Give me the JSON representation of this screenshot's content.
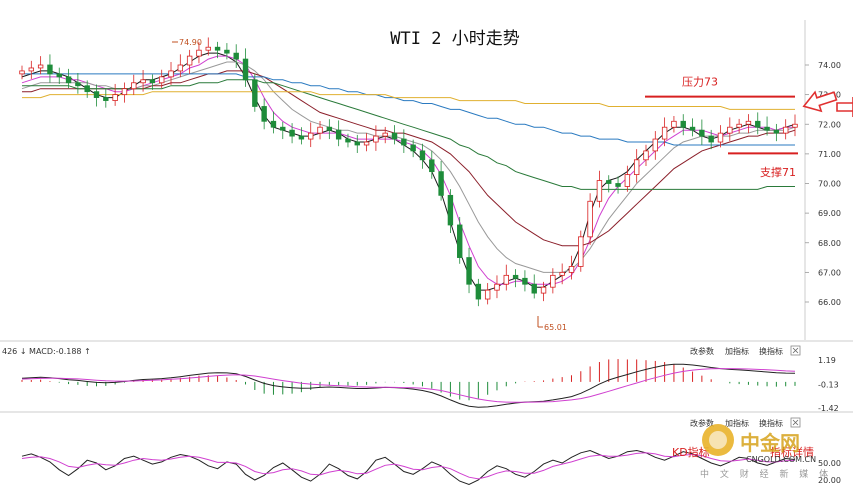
{
  "chart_data": {
    "type": "candlestick",
    "title": "WTI 2 小时走势",
    "y_ticks": [
      "74.00",
      "73.00",
      "72.00",
      "71.00",
      "70.00",
      "69.00",
      "68.00",
      "67.00",
      "66.00"
    ],
    "ylim": [
      65.0,
      75.0
    ],
    "high_label": "74.90",
    "low_label": "65.01",
    "resistance": {
      "label": "压力73",
      "value": 73.0
    },
    "support": {
      "label": "支撑71",
      "value": 71.0
    },
    "closes": [
      73.8,
      73.9,
      74.0,
      73.7,
      73.6,
      73.4,
      73.3,
      73.1,
      72.9,
      72.8,
      73.0,
      73.2,
      73.4,
      73.5,
      73.4,
      73.6,
      73.8,
      74.0,
      74.3,
      74.5,
      74.6,
      74.5,
      74.4,
      74.2,
      73.5,
      72.6,
      72.1,
      71.9,
      71.8,
      71.6,
      71.5,
      71.7,
      71.9,
      71.8,
      71.5,
      71.4,
      71.3,
      71.4,
      71.6,
      71.7,
      71.5,
      71.3,
      71.1,
      70.8,
      70.4,
      69.6,
      68.6,
      67.5,
      66.6,
      66.1,
      66.4,
      66.6,
      66.9,
      66.8,
      66.6,
      66.3,
      66.5,
      66.9,
      67.0,
      67.2,
      68.2,
      69.4,
      70.1,
      70.0,
      69.9,
      70.3,
      70.8,
      71.1,
      71.5,
      71.9,
      72.1,
      71.9,
      71.8,
      71.6,
      71.4,
      71.7,
      71.9,
      72.0,
      72.1,
      71.9,
      71.8,
      71.7,
      71.9,
      72.0
    ],
    "moving_averages": [
      {
        "color": "#1a1a1a",
        "values": [
          73.6,
          73.7,
          73.8,
          73.8,
          73.7,
          73.6,
          73.4,
          73.2,
          73.0,
          72.9,
          72.9,
          73.1,
          73.3,
          73.5,
          73.5,
          73.6,
          73.7,
          73.9,
          74.1,
          74.3,
          74.4,
          74.4,
          74.3,
          74.1,
          73.6,
          72.9,
          72.3,
          71.9,
          71.8,
          71.7,
          71.6,
          71.6,
          71.7,
          71.8,
          71.7,
          71.5,
          71.4,
          71.4,
          71.5,
          71.6,
          71.5,
          71.3,
          71.1,
          70.8,
          70.4,
          69.7,
          68.7,
          67.7,
          66.9,
          66.4,
          66.4,
          66.5,
          66.7,
          66.8,
          66.7,
          66.5,
          66.5,
          66.7,
          66.9,
          67.2,
          67.9,
          69.0,
          69.8,
          70.1,
          70.2,
          70.4,
          70.8,
          71.1,
          71.4,
          71.7,
          71.9,
          71.9,
          71.8,
          71.6,
          71.5,
          71.6,
          71.8,
          71.9,
          72.0,
          71.9,
          71.8,
          71.8,
          71.9,
          72.0
        ]
      },
      {
        "color": "#d040d0",
        "values": [
          73.4,
          73.5,
          73.6,
          73.6,
          73.6,
          73.5,
          73.5,
          73.4,
          73.3,
          73.2,
          73.1,
          73.1,
          73.2,
          73.3,
          73.4,
          73.5,
          73.6,
          73.7,
          73.9,
          74.0,
          74.2,
          74.3,
          74.3,
          74.2,
          74.0,
          73.5,
          72.9,
          72.4,
          72.1,
          71.9,
          71.8,
          71.7,
          71.7,
          71.7,
          71.7,
          71.6,
          71.5,
          71.5,
          71.5,
          71.5,
          71.5,
          71.4,
          71.3,
          71.1,
          70.8,
          70.3,
          69.6,
          68.7,
          67.9,
          67.2,
          66.8,
          66.6,
          66.6,
          66.7,
          66.7,
          66.6,
          66.6,
          66.6,
          66.7,
          66.9,
          67.4,
          68.1,
          68.9,
          69.5,
          69.9,
          70.2,
          70.5,
          70.8,
          71.1,
          71.4,
          71.6,
          71.8,
          71.8,
          71.8,
          71.7,
          71.6,
          71.7,
          71.8,
          71.9,
          71.9,
          71.9,
          71.8,
          71.9,
          71.9
        ]
      },
      {
        "color": "#999999",
        "values": [
          73.2,
          73.3,
          73.4,
          73.4,
          73.4,
          73.4,
          73.4,
          73.4,
          73.3,
          73.3,
          73.2,
          73.2,
          73.2,
          73.3,
          73.3,
          73.4,
          73.5,
          73.6,
          73.7,
          73.8,
          73.9,
          74.0,
          74.1,
          74.1,
          74.0,
          73.8,
          73.5,
          73.1,
          72.8,
          72.5,
          72.3,
          72.1,
          72.0,
          71.9,
          71.8,
          71.8,
          71.7,
          71.7,
          71.6,
          71.6,
          71.6,
          71.5,
          71.4,
          71.3,
          71.1,
          70.8,
          70.4,
          69.9,
          69.3,
          68.7,
          68.2,
          67.8,
          67.5,
          67.3,
          67.2,
          67.1,
          67.0,
          67.0,
          67.0,
          67.1,
          67.4,
          67.8,
          68.3,
          68.8,
          69.2,
          69.6,
          70.0,
          70.3,
          70.6,
          70.9,
          71.2,
          71.4,
          71.5,
          71.6,
          71.6,
          71.6,
          71.6,
          71.7,
          71.7,
          71.8,
          71.8,
          71.8,
          71.8,
          71.9
        ]
      },
      {
        "color": "#8b1f2a",
        "values": [
          73.1,
          73.1,
          73.2,
          73.2,
          73.2,
          73.2,
          73.2,
          73.2,
          73.2,
          73.2,
          73.2,
          73.2,
          73.2,
          73.2,
          73.3,
          73.3,
          73.4,
          73.4,
          73.5,
          73.6,
          73.7,
          73.7,
          73.8,
          73.8,
          73.8,
          73.7,
          73.6,
          73.4,
          73.2,
          73.0,
          72.8,
          72.6,
          72.4,
          72.3,
          72.2,
          72.1,
          72.0,
          71.9,
          71.8,
          71.8,
          71.7,
          71.7,
          71.6,
          71.5,
          71.4,
          71.2,
          71.0,
          70.7,
          70.4,
          70.0,
          69.6,
          69.3,
          69.0,
          68.7,
          68.5,
          68.3,
          68.1,
          68.0,
          67.9,
          67.9,
          67.9,
          68.0,
          68.2,
          68.4,
          68.7,
          69.0,
          69.3,
          69.6,
          69.9,
          70.2,
          70.5,
          70.7,
          70.9,
          71.1,
          71.2,
          71.3,
          71.4,
          71.5,
          71.6,
          71.6,
          71.7,
          71.7,
          71.7,
          71.8
        ]
      },
      {
        "color": "#2a7a3a",
        "values": [
          73.3,
          73.3,
          73.3,
          73.3,
          73.3,
          73.3,
          73.2,
          73.2,
          73.2,
          73.2,
          73.2,
          73.2,
          73.2,
          73.2,
          73.2,
          73.2,
          73.3,
          73.3,
          73.3,
          73.4,
          73.4,
          73.4,
          73.5,
          73.5,
          73.5,
          73.5,
          73.4,
          73.4,
          73.3,
          73.2,
          73.1,
          73.0,
          72.9,
          72.8,
          72.7,
          72.6,
          72.5,
          72.4,
          72.3,
          72.2,
          72.1,
          72.0,
          71.9,
          71.8,
          71.7,
          71.6,
          71.5,
          71.3,
          71.2,
          71.0,
          70.9,
          70.7,
          70.6,
          70.4,
          70.3,
          70.2,
          70.1,
          70.0,
          69.9,
          69.9,
          69.8,
          69.8,
          69.8,
          69.8,
          69.8,
          69.8,
          69.8,
          69.8,
          69.8,
          69.8,
          69.8,
          69.8,
          69.8,
          69.8,
          69.8,
          69.8,
          69.8,
          69.8,
          69.8,
          69.8,
          69.9,
          69.9,
          69.9,
          69.9
        ]
      },
      {
        "color": "#2a7ac0",
        "values": [
          73.7,
          73.7,
          73.7,
          73.7,
          73.7,
          73.7,
          73.7,
          73.7,
          73.7,
          73.7,
          73.7,
          73.7,
          73.7,
          73.7,
          73.7,
          73.7,
          73.7,
          73.7,
          73.7,
          73.7,
          73.7,
          73.7,
          73.7,
          73.7,
          73.6,
          73.6,
          73.6,
          73.5,
          73.5,
          73.4,
          73.4,
          73.3,
          73.3,
          73.2,
          73.2,
          73.1,
          73.1,
          73.0,
          73.0,
          72.9,
          72.9,
          72.8,
          72.8,
          72.7,
          72.7,
          72.6,
          72.5,
          72.5,
          72.4,
          72.3,
          72.2,
          72.2,
          72.1,
          72.0,
          72.0,
          71.9,
          71.9,
          71.8,
          71.7,
          71.7,
          71.6,
          71.6,
          71.5,
          71.5,
          71.5,
          71.4,
          71.4,
          71.4,
          71.4,
          71.4,
          71.3,
          71.3,
          71.3,
          71.3,
          71.3,
          71.3,
          71.3,
          71.3,
          71.3,
          71.3,
          71.3,
          71.3,
          71.3,
          71.3
        ]
      },
      {
        "color": "#e0b030",
        "values": [
          72.9,
          72.9,
          72.9,
          73.0,
          73.0,
          73.0,
          73.0,
          73.0,
          73.0,
          73.0,
          73.0,
          73.0,
          73.0,
          73.0,
          73.1,
          73.1,
          73.1,
          73.1,
          73.1,
          73.1,
          73.1,
          73.1,
          73.1,
          73.1,
          73.1,
          73.1,
          73.1,
          73.1,
          73.1,
          73.1,
          73.1,
          73.1,
          73.0,
          73.0,
          73.0,
          73.0,
          73.0,
          73.0,
          73.0,
          73.0,
          72.9,
          72.9,
          72.9,
          72.9,
          72.9,
          72.9,
          72.9,
          72.8,
          72.8,
          72.8,
          72.8,
          72.8,
          72.8,
          72.8,
          72.7,
          72.7,
          72.7,
          72.7,
          72.7,
          72.7,
          72.7,
          72.7,
          72.7,
          72.6,
          72.6,
          72.6,
          72.6,
          72.6,
          72.6,
          72.6,
          72.6,
          72.6,
          72.6,
          72.6,
          72.6,
          72.6,
          72.5,
          72.5,
          72.5,
          72.5,
          72.5,
          72.5,
          72.5,
          72.5
        ]
      }
    ],
    "macd": {
      "header": "426 ↓ MACD:-0.188 ↑",
      "y_ticks": [
        "1.19",
        "-0.13",
        "-1.42"
      ],
      "ylim": [
        -1.6,
        1.4
      ],
      "dif": [
        0.2,
        0.22,
        0.25,
        0.22,
        0.18,
        0.12,
        0.08,
        0.02,
        -0.03,
        -0.05,
        -0.03,
        0.02,
        0.08,
        0.13,
        0.15,
        0.18,
        0.22,
        0.28,
        0.35,
        0.42,
        0.48,
        0.5,
        0.49,
        0.44,
        0.3,
        0.1,
        -0.08,
        -0.2,
        -0.27,
        -0.32,
        -0.35,
        -0.34,
        -0.3,
        -0.28,
        -0.3,
        -0.33,
        -0.36,
        -0.36,
        -0.33,
        -0.3,
        -0.31,
        -0.34,
        -0.39,
        -0.47,
        -0.58,
        -0.76,
        -0.98,
        -1.18,
        -1.32,
        -1.38,
        -1.36,
        -1.3,
        -1.22,
        -1.15,
        -1.1,
        -1.08,
        -1.05,
        -0.98,
        -0.9,
        -0.8,
        -0.62,
        -0.38,
        -0.12,
        0.1,
        0.26,
        0.4,
        0.55,
        0.68,
        0.8,
        0.9,
        0.96,
        0.96,
        0.92,
        0.86,
        0.78,
        0.72,
        0.68,
        0.65,
        0.62,
        0.58,
        0.54,
        0.5,
        0.48,
        0.47
      ],
      "dea": [
        0.15,
        0.17,
        0.19,
        0.2,
        0.2,
        0.18,
        0.16,
        0.13,
        0.09,
        0.06,
        0.04,
        0.04,
        0.05,
        0.07,
        0.09,
        0.11,
        0.14,
        0.17,
        0.21,
        0.25,
        0.3,
        0.34,
        0.37,
        0.39,
        0.37,
        0.32,
        0.24,
        0.15,
        0.07,
        0.0,
        -0.07,
        -0.12,
        -0.16,
        -0.18,
        -0.21,
        -0.23,
        -0.26,
        -0.28,
        -0.29,
        -0.29,
        -0.3,
        -0.31,
        -0.32,
        -0.35,
        -0.4,
        -0.47,
        -0.58,
        -0.7,
        -0.82,
        -0.93,
        -1.01,
        -1.07,
        -1.1,
        -1.11,
        -1.11,
        -1.1,
        -1.09,
        -1.07,
        -1.03,
        -0.98,
        -0.91,
        -0.8,
        -0.66,
        -0.51,
        -0.36,
        -0.21,
        -0.06,
        0.09,
        0.23,
        0.36,
        0.48,
        0.57,
        0.64,
        0.69,
        0.71,
        0.72,
        0.72,
        0.71,
        0.7,
        0.68,
        0.66,
        0.63,
        0.6,
        0.58
      ]
    },
    "kd": {
      "header_right": [
        "改参数",
        "加指标",
        "换指标"
      ],
      "y_ticks": [
        "50.00",
        "20.00"
      ],
      "k": [
        62,
        66,
        60,
        52,
        38,
        28,
        40,
        55,
        50,
        38,
        45,
        58,
        62,
        55,
        48,
        52,
        60,
        65,
        62,
        55,
        45,
        40,
        52,
        48,
        30,
        20,
        28,
        42,
        50,
        38,
        25,
        18,
        30,
        48,
        40,
        28,
        22,
        35,
        55,
        60,
        48,
        35,
        30,
        40,
        52,
        45,
        30,
        18,
        12,
        20,
        35,
        45,
        40,
        30,
        25,
        35,
        48,
        55,
        50,
        60,
        68,
        72,
        65,
        58,
        62,
        70,
        72,
        68,
        60,
        55,
        62,
        70,
        66,
        58,
        50,
        45,
        52,
        60,
        58,
        50,
        46,
        52,
        58,
        56
      ],
      "d": [
        58,
        60,
        61,
        58,
        52,
        44,
        42,
        46,
        49,
        47,
        46,
        50,
        55,
        58,
        56,
        55,
        57,
        60,
        62,
        60,
        56,
        51,
        51,
        50,
        44,
        35,
        31,
        33,
        38,
        40,
        36,
        30,
        29,
        34,
        37,
        35,
        31,
        32,
        39,
        46,
        48,
        44,
        39,
        38,
        42,
        44,
        40,
        32,
        25,
        22,
        26,
        32,
        36,
        35,
        32,
        32,
        37,
        44,
        48,
        52,
        57,
        62,
        64,
        62,
        62,
        64,
        67,
        68,
        66,
        62,
        61,
        64,
        65,
        63,
        58,
        54,
        53,
        55,
        57,
        55,
        52,
        52,
        54,
        55
      ]
    },
    "buttons": [
      "改参数",
      "加指标",
      "换指标"
    ],
    "watermark": {
      "name": "中金网",
      "domain": "CNGOLD.COM.CN",
      "tagline": "中 文 财 经 新 媒 体",
      "kd_overlay": "KD指标",
      "kd_overlay2": "指标详情"
    }
  }
}
